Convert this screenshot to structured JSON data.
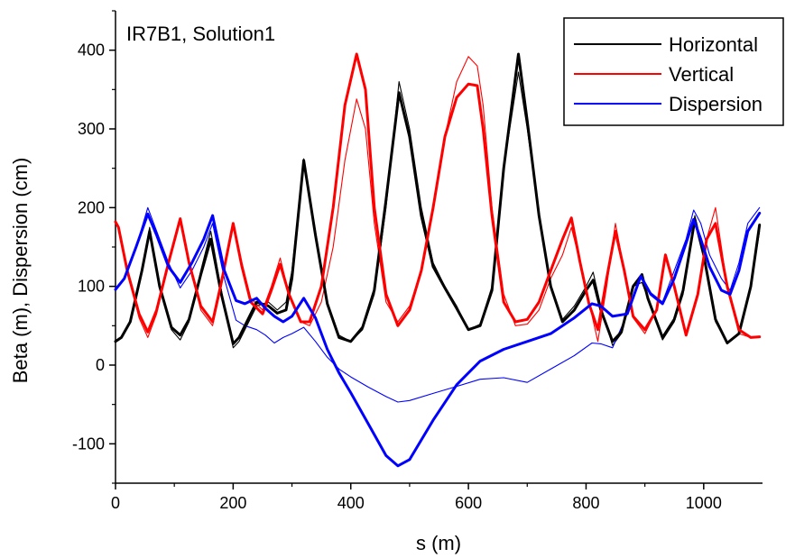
{
  "chart_data": {
    "type": "line",
    "title": "IR7B1, Solution1",
    "xlabel": "s (m)",
    "ylabel": "Beta (m), Dispersion (cm)",
    "xlim": [
      0,
      1100
    ],
    "ylim": [
      -150,
      450
    ],
    "xticks": [
      0,
      200,
      400,
      600,
      800,
      1000
    ],
    "yticks": [
      -100,
      0,
      100,
      200,
      300,
      400
    ],
    "legend_position": "top-right",
    "grid": false,
    "series": [
      {
        "name": "Horizontal",
        "color": "#000000",
        "style": "thin",
        "x": [
          0,
          10,
          25,
          45,
          58,
          75,
          95,
          110,
          125,
          145,
          162,
          180,
          200,
          210,
          220,
          240,
          260,
          275,
          290,
          300,
          320,
          340,
          360,
          380,
          400,
          420,
          440,
          460,
          482,
          500,
          520,
          540,
          560,
          580,
          600,
          620,
          640,
          660,
          685,
          700,
          720,
          740,
          760,
          780,
          800,
          812,
          825,
          845,
          860,
          880,
          895,
          905,
          930,
          950,
          965,
          985,
          1000,
          1020,
          1040,
          1060,
          1080,
          1095
        ],
        "y": [
          30,
          35,
          55,
          120,
          175,
          100,
          45,
          32,
          55,
          120,
          170,
          95,
          22,
          30,
          45,
          75,
          80,
          70,
          80,
          120,
          262,
          170,
          80,
          38,
          30,
          45,
          90,
          200,
          360,
          300,
          200,
          130,
          100,
          75,
          45,
          52,
          100,
          250,
          372,
          300,
          190,
          100,
          58,
          75,
          100,
          118,
          75,
          25,
          40,
          100,
          105,
          85,
          32,
          55,
          90,
          190,
          140,
          55,
          28,
          40,
          100,
          170
        ]
      },
      {
        "name": "Vertical",
        "color": "#ff0000",
        "style": "thin",
        "x": [
          0,
          5,
          20,
          40,
          55,
          70,
          90,
          110,
          125,
          145,
          165,
          180,
          200,
          215,
          230,
          250,
          265,
          280,
          295,
          315,
          330,
          350,
          370,
          390,
          410,
          425,
          440,
          460,
          480,
          500,
          520,
          540,
          560,
          580,
          600,
          615,
          625,
          640,
          660,
          680,
          700,
          720,
          740,
          760,
          775,
          790,
          805,
          820,
          835,
          850,
          865,
          880,
          900,
          920,
          935,
          950,
          970,
          990,
          1005,
          1020,
          1040,
          1060,
          1080,
          1095
        ],
        "y": [
          180,
          175,
          120,
          60,
          35,
          65,
          130,
          186,
          130,
          70,
          50,
          100,
          180,
          130,
          85,
          70,
          100,
          136,
          90,
          55,
          50,
          80,
          150,
          260,
          338,
          300,
          180,
          80,
          55,
          75,
          120,
          200,
          290,
          360,
          392,
          380,
          330,
          200,
          90,
          50,
          52,
          70,
          110,
          140,
          175,
          130,
          80,
          30,
          100,
          180,
          120,
          60,
          40,
          70,
          140,
          100,
          40,
          90,
          160,
          200,
          100,
          40,
          35,
          36
        ]
      },
      {
        "name": "Dispersion",
        "color": "#0000ff",
        "style": "thin",
        "x": [
          0,
          15,
          35,
          55,
          70,
          90,
          110,
          130,
          150,
          165,
          185,
          205,
          220,
          240,
          255,
          270,
          285,
          300,
          320,
          340,
          360,
          380,
          400,
          430,
          460,
          480,
          500,
          540,
          580,
          620,
          660,
          700,
          740,
          780,
          810,
          825,
          845,
          870,
          893,
          910,
          930,
          950,
          970,
          983,
          995,
          1010,
          1030,
          1045,
          1060,
          1075,
          1095
        ],
        "y": [
          98,
          110,
          150,
          200,
          170,
          130,
          98,
          120,
          150,
          180,
          110,
          57,
          50,
          45,
          38,
          28,
          35,
          40,
          48,
          30,
          10,
          -5,
          -15,
          -28,
          -40,
          -47,
          -45,
          -36,
          -27,
          -18,
          -16,
          -22,
          -5,
          12,
          28,
          27,
          22,
          65,
          112,
          92,
          80,
          120,
          160,
          197,
          180,
          140,
          110,
          95,
          130,
          180,
          200
        ]
      },
      {
        "name": "Horizontal",
        "color": "#000000",
        "style": "thick",
        "x": [
          0,
          10,
          25,
          45,
          58,
          75,
          95,
          110,
          125,
          145,
          162,
          180,
          200,
          210,
          220,
          240,
          260,
          275,
          290,
          300,
          320,
          340,
          360,
          380,
          400,
          420,
          440,
          460,
          482,
          500,
          520,
          540,
          560,
          580,
          600,
          620,
          640,
          660,
          685,
          700,
          720,
          740,
          760,
          780,
          800,
          812,
          825,
          845,
          860,
          880,
          895,
          905,
          930,
          950,
          965,
          985,
          1000,
          1020,
          1040,
          1060,
          1080,
          1095
        ],
        "y": [
          30,
          35,
          55,
          120,
          170,
          100,
          48,
          38,
          58,
          115,
          160,
          90,
          27,
          35,
          50,
          80,
          75,
          66,
          70,
          110,
          260,
          165,
          78,
          35,
          30,
          48,
          95,
          210,
          346,
          290,
          190,
          125,
          98,
          72,
          45,
          50,
          95,
          250,
          395,
          310,
          190,
          100,
          55,
          70,
          95,
          108,
          70,
          30,
          42,
          100,
          115,
          85,
          35,
          58,
          95,
          185,
          140,
          58,
          28,
          40,
          100,
          178
        ]
      },
      {
        "name": "Vertical",
        "color": "#ff0000",
        "style": "thick",
        "x": [
          0,
          5,
          20,
          40,
          55,
          70,
          90,
          110,
          125,
          145,
          165,
          180,
          200,
          215,
          230,
          250,
          265,
          280,
          295,
          315,
          330,
          350,
          370,
          390,
          410,
          425,
          440,
          460,
          480,
          500,
          520,
          540,
          560,
          580,
          600,
          615,
          625,
          640,
          660,
          680,
          700,
          720,
          740,
          760,
          775,
          790,
          805,
          820,
          835,
          850,
          865,
          880,
          900,
          920,
          935,
          950,
          970,
          990,
          1005,
          1020,
          1040,
          1060,
          1080,
          1095
        ],
        "y": [
          182,
          175,
          120,
          65,
          42,
          70,
          130,
          186,
          130,
          75,
          55,
          105,
          180,
          125,
          80,
          65,
          95,
          128,
          90,
          55,
          55,
          100,
          200,
          330,
          395,
          350,
          200,
          90,
          50,
          70,
          120,
          200,
          290,
          340,
          357,
          355,
          300,
          190,
          80,
          55,
          58,
          80,
          120,
          160,
          187,
          130,
          78,
          45,
          110,
          170,
          120,
          62,
          45,
          70,
          140,
          100,
          38,
          90,
          160,
          180,
          100,
          45,
          35,
          36
        ]
      },
      {
        "name": "Dispersion",
        "color": "#0000ff",
        "style": "thick",
        "x": [
          0,
          15,
          35,
          55,
          70,
          90,
          110,
          130,
          150,
          165,
          185,
          205,
          220,
          240,
          255,
          270,
          285,
          300,
          320,
          340,
          360,
          380,
          400,
          430,
          460,
          480,
          500,
          540,
          580,
          620,
          660,
          700,
          740,
          780,
          810,
          825,
          845,
          870,
          893,
          910,
          930,
          950,
          970,
          983,
          995,
          1010,
          1030,
          1045,
          1060,
          1075,
          1095
        ],
        "y": [
          96,
          110,
          150,
          192,
          165,
          125,
          105,
          130,
          160,
          190,
          120,
          82,
          78,
          85,
          72,
          62,
          55,
          62,
          85,
          60,
          20,
          -10,
          -35,
          -75,
          -115,
          -128,
          -120,
          -70,
          -25,
          5,
          20,
          30,
          40,
          60,
          78,
          75,
          62,
          65,
          113,
          90,
          78,
          110,
          155,
          185,
          160,
          125,
          95,
          90,
          120,
          170,
          193
        ]
      }
    ]
  }
}
